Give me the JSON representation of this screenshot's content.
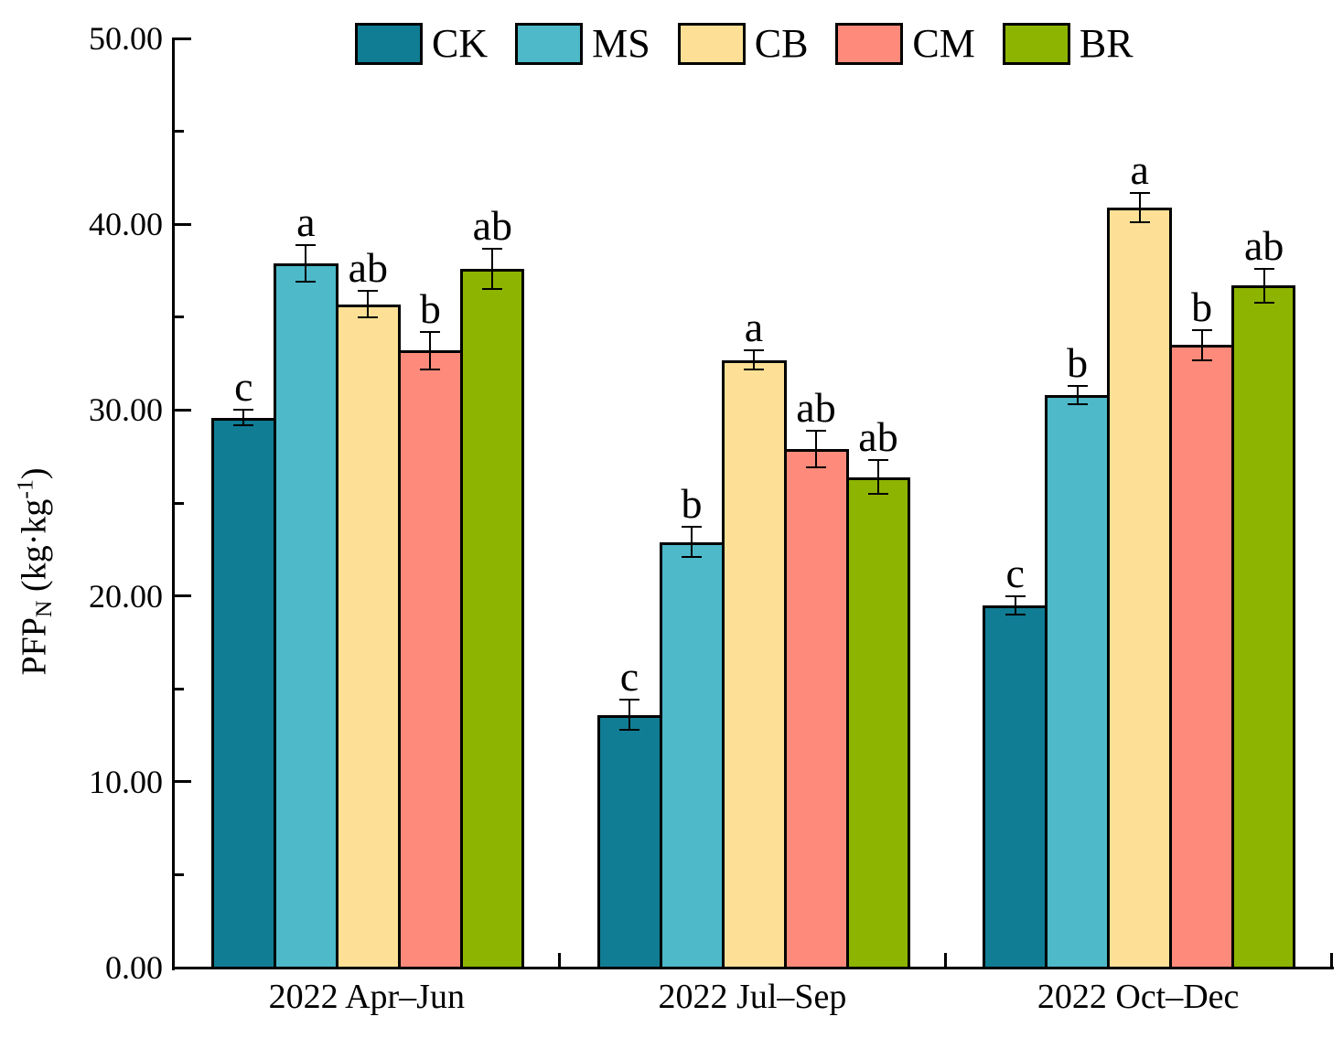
{
  "chart_data": {
    "type": "bar",
    "title": "",
    "ylabel_parts": [
      {
        "text": "PFP"
      },
      {
        "text": "N",
        "style": "sub"
      },
      {
        "text": " (kg·kg"
      },
      {
        "text": "-1",
        "style": "sup"
      },
      {
        "text": ")"
      }
    ],
    "ylim": [
      0,
      50
    ],
    "grid": false,
    "legend_position": "top",
    "yticks": [
      {
        "value": 0,
        "label": "0.00"
      },
      {
        "value": 10,
        "label": "10.00"
      },
      {
        "value": 20,
        "label": "20.00"
      },
      {
        "value": 30,
        "label": "30.00"
      },
      {
        "value": 40,
        "label": "40.00"
      },
      {
        "value": 50,
        "label": "50.00"
      }
    ],
    "yticks_minor": [
      5,
      15,
      25,
      35,
      45
    ],
    "categories": [
      "2022 Apr–Jun",
      "2022 Jul–Sep",
      "2022 Oct–Dec"
    ],
    "legend_labels": [
      "CK",
      "MS",
      "CB",
      "CM",
      "BR"
    ],
    "series": [
      {
        "name": "CK",
        "color": "#107d94",
        "values": [
          29.6,
          13.6,
          19.5
        ],
        "errors": [
          0.4,
          0.8,
          0.5
        ],
        "letters": [
          "c",
          "c",
          "c"
        ]
      },
      {
        "name": "MS",
        "color": "#4db9c9",
        "values": [
          37.9,
          22.9,
          30.8
        ],
        "errors": [
          1.0,
          0.8,
          0.5
        ],
        "letters": [
          "a",
          "b",
          "b"
        ]
      },
      {
        "name": "CB",
        "color": "#fde096",
        "values": [
          35.7,
          32.7,
          40.9
        ],
        "errors": [
          0.7,
          0.5,
          0.8
        ],
        "letters": [
          "ab",
          "a",
          "a"
        ]
      },
      {
        "name": "CM",
        "color": "#fd8a7a",
        "values": [
          33.2,
          27.9,
          33.5
        ],
        "errors": [
          1.0,
          1.0,
          0.8
        ],
        "letters": [
          "b",
          "ab",
          "b"
        ]
      },
      {
        "name": "BR",
        "color": "#8eb402",
        "values": [
          37.6,
          26.4,
          36.7
        ],
        "errors": [
          1.1,
          0.9,
          0.9
        ],
        "letters": [
          "ab",
          "ab",
          "ab"
        ]
      }
    ]
  }
}
